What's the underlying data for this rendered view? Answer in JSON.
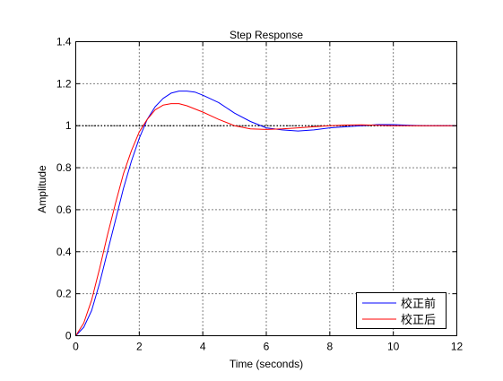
{
  "chart_data": {
    "type": "line",
    "title": "Step Response",
    "xlabel": "Time (seconds)",
    "ylabel": "Amplitude",
    "xlim": [
      0,
      12
    ],
    "ylim": [
      0,
      1.4
    ],
    "xticks": [
      0,
      2,
      4,
      6,
      8,
      10,
      12
    ],
    "yticks": [
      0,
      0.2,
      0.4,
      0.6,
      0.8,
      1,
      1.2,
      1.4
    ],
    "xtick_labels": [
      "0",
      "2",
      "4",
      "6",
      "8",
      "10",
      "12"
    ],
    "ytick_labels": [
      "0",
      "0.2",
      "0.4",
      "0.6",
      "0.8",
      "1",
      "1.2",
      "1.4"
    ],
    "grid": true,
    "reference_line": {
      "y": 1,
      "style": "dotted",
      "color": "#000000"
    },
    "legend_position": "bottom-right",
    "series": [
      {
        "name": "校正前",
        "color": "#0000ff",
        "x": [
          0,
          0.25,
          0.5,
          0.75,
          1.0,
          1.25,
          1.5,
          1.75,
          2.0,
          2.25,
          2.5,
          2.75,
          3.0,
          3.25,
          3.5,
          3.75,
          4.0,
          4.5,
          5.0,
          5.5,
          6.0,
          6.5,
          7.0,
          7.5,
          8.0,
          8.5,
          9.0,
          9.5,
          10.0,
          10.5,
          11.0,
          12.0
        ],
        "y": [
          0,
          0.04,
          0.12,
          0.25,
          0.4,
          0.55,
          0.7,
          0.83,
          0.94,
          1.03,
          1.09,
          1.13,
          1.155,
          1.165,
          1.165,
          1.16,
          1.145,
          1.11,
          1.06,
          1.02,
          0.99,
          0.98,
          0.975,
          0.98,
          0.99,
          0.995,
          1.0,
          1.005,
          1.005,
          1.002,
          1.0,
          1.0
        ]
      },
      {
        "name": "校正后",
        "color": "#ff0000",
        "x": [
          0,
          0.25,
          0.5,
          0.75,
          1.0,
          1.25,
          1.5,
          1.75,
          2.0,
          2.25,
          2.5,
          2.75,
          3.0,
          3.25,
          3.5,
          3.75,
          4.0,
          4.5,
          5.0,
          5.5,
          6.0,
          6.5,
          7.0,
          7.5,
          8.0,
          8.5,
          9.0,
          9.5,
          10.0,
          12.0
        ],
        "y": [
          0,
          0.06,
          0.17,
          0.32,
          0.48,
          0.63,
          0.77,
          0.88,
          0.97,
          1.03,
          1.075,
          1.098,
          1.105,
          1.105,
          1.095,
          1.08,
          1.065,
          1.03,
          1.0,
          0.985,
          0.982,
          0.985,
          0.99,
          0.995,
          1.0,
          1.003,
          1.004,
          1.002,
          1.0,
          1.0
        ]
      }
    ]
  }
}
